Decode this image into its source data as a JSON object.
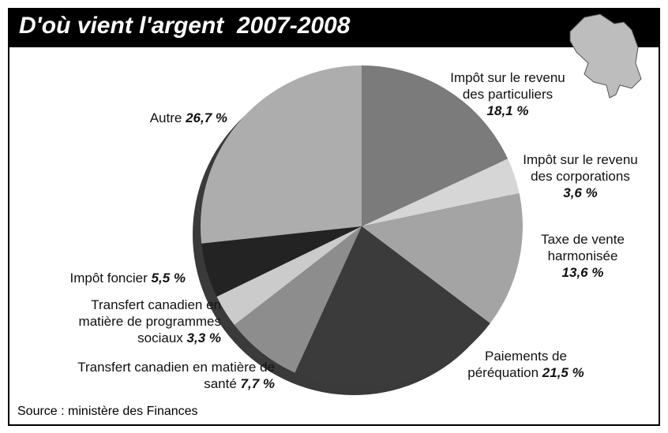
{
  "chart_data": {
    "type": "pie",
    "title": "D'où vient l'argent  2007-2008",
    "categories": [
      "Impôt sur le revenu des particuliers",
      "Impôt sur le revenu des corporations",
      "Taxe de vente harmonisée",
      "Paiements de péréquation",
      "Transfert canadien en matière de santé",
      "Transfert canadien en matière de programmes sociaux",
      "Impôt foncier",
      "Autre"
    ],
    "values": [
      18.1,
      3.6,
      13.6,
      21.5,
      7.7,
      3.3,
      5.5,
      26.7
    ],
    "value_labels": [
      "18,1 %",
      "3,6 %",
      "13,6 %",
      "21,5 %",
      "7,7 %",
      "3,3 %",
      "5,5 %",
      "26,7 %"
    ],
    "colors": [
      "#7b7b7b",
      "#d6d6d6",
      "#a4a4a4",
      "#3b3b3b",
      "#8d8d8d",
      "#cbcbcb",
      "#232323",
      "#adadad"
    ],
    "source": "Source : ministère des Finances"
  }
}
